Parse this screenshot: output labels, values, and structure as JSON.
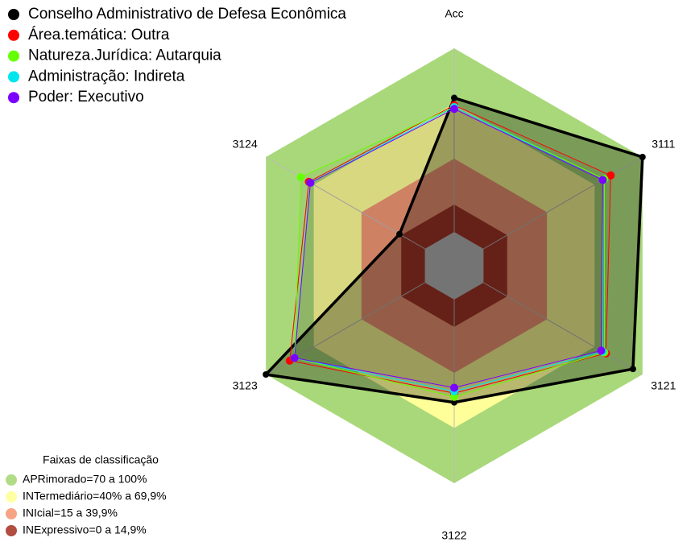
{
  "chart_data": {
    "type": "radar",
    "axes": [
      "Acc",
      "3111",
      "3121",
      "3122",
      "3123",
      "3124"
    ],
    "rlim": [
      0,
      100
    ],
    "series": [
      {
        "name": "Conselho Administrativo de Defesa Econômica",
        "color": "#000000",
        "values": [
          73,
          100,
          94,
          56,
          100,
          16
        ]
      },
      {
        "name": "Área.temática: Outra",
        "color": "#ff0000",
        "values": [
          69,
          80,
          77,
          51,
          85,
          73
        ]
      },
      {
        "name": "Natureza.Jurídica: Autarquia",
        "color": "#66ff00",
        "values": [
          68,
          76,
          76,
          53,
          82,
          78
        ]
      },
      {
        "name": "Administração: Indireta",
        "color": "#00e5ee",
        "values": [
          68,
          75,
          75,
          50,
          82,
          72
        ]
      },
      {
        "name": "Poder: Executivo",
        "color": "#7a00ff",
        "values": [
          67,
          75,
          74,
          48,
          82,
          72
        ]
      }
    ],
    "bands_title": "Faixas de classificação",
    "bands": [
      {
        "name": "APRimorado=70 a 100%",
        "color": "#a9d87a",
        "max": 100
      },
      {
        "name": "INTermediário=40% a 69,9%",
        "color": "#ffff99",
        "max": 69.9
      },
      {
        "name": "INIcial=15 a 39,9%",
        "color": "#f59a78",
        "max": 39.9
      },
      {
        "name": "INExpressivo=0 a 14,9%",
        "color": "#a83a2c",
        "max": 14.9
      }
    ]
  }
}
